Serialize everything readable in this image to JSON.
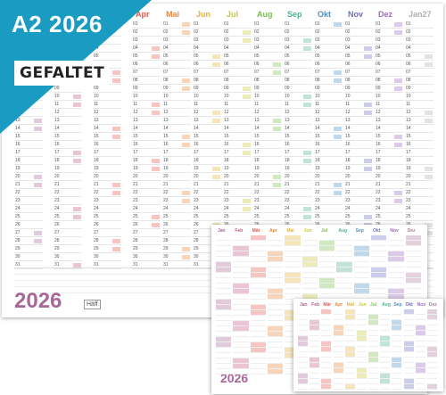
{
  "banner": {
    "size": "A2",
    "year": "2026",
    "fold": "GEFALTET",
    "color": "#1a9bc2"
  },
  "main": {
    "months": [
      {
        "name": "Apr",
        "color": "#e55a4e"
      },
      {
        "name": "Mai",
        "color": "#e8863a"
      },
      {
        "name": "Jun",
        "color": "#e6b33a"
      },
      {
        "name": "Jul",
        "color": "#c8c93a"
      },
      {
        "name": "Aug",
        "color": "#7cbf4e"
      },
      {
        "name": "Sep",
        "color": "#4db38c"
      },
      {
        "name": "Okt",
        "color": "#4a8fc9"
      },
      {
        "name": "Nov",
        "color": "#6a70c2"
      },
      {
        "name": "Dez",
        "color": "#9b6bbd"
      },
      {
        "name": "Jan27",
        "color": "#b0b0b0"
      }
    ],
    "left_days": [
      "01",
      "02",
      "03",
      "04",
      "05",
      "06",
      "07",
      "08",
      "09",
      "10",
      "11",
      "12",
      "13",
      "14",
      "15",
      "16",
      "17",
      "18",
      "19",
      "20",
      "21",
      "22",
      "23",
      "24",
      "25",
      "26",
      "27",
      "28",
      "29",
      "30",
      "31"
    ],
    "year_label": "2026",
    "logo": "Häff"
  },
  "mini": {
    "months": [
      "Jan",
      "Feb",
      "Mär",
      "Apr",
      "Mai",
      "Jun",
      "Jul",
      "Aug",
      "Sep",
      "Okt",
      "Nov",
      "Dez"
    ],
    "year_label": "2026",
    "colors": [
      "#a7679a",
      "#c05a8a",
      "#e55a4e",
      "#e8863a",
      "#e6b33a",
      "#c8c93a",
      "#7cbf4e",
      "#4db38c",
      "#4a8fc9",
      "#6a70c2",
      "#9b6bbd",
      "#b07aa0"
    ]
  }
}
